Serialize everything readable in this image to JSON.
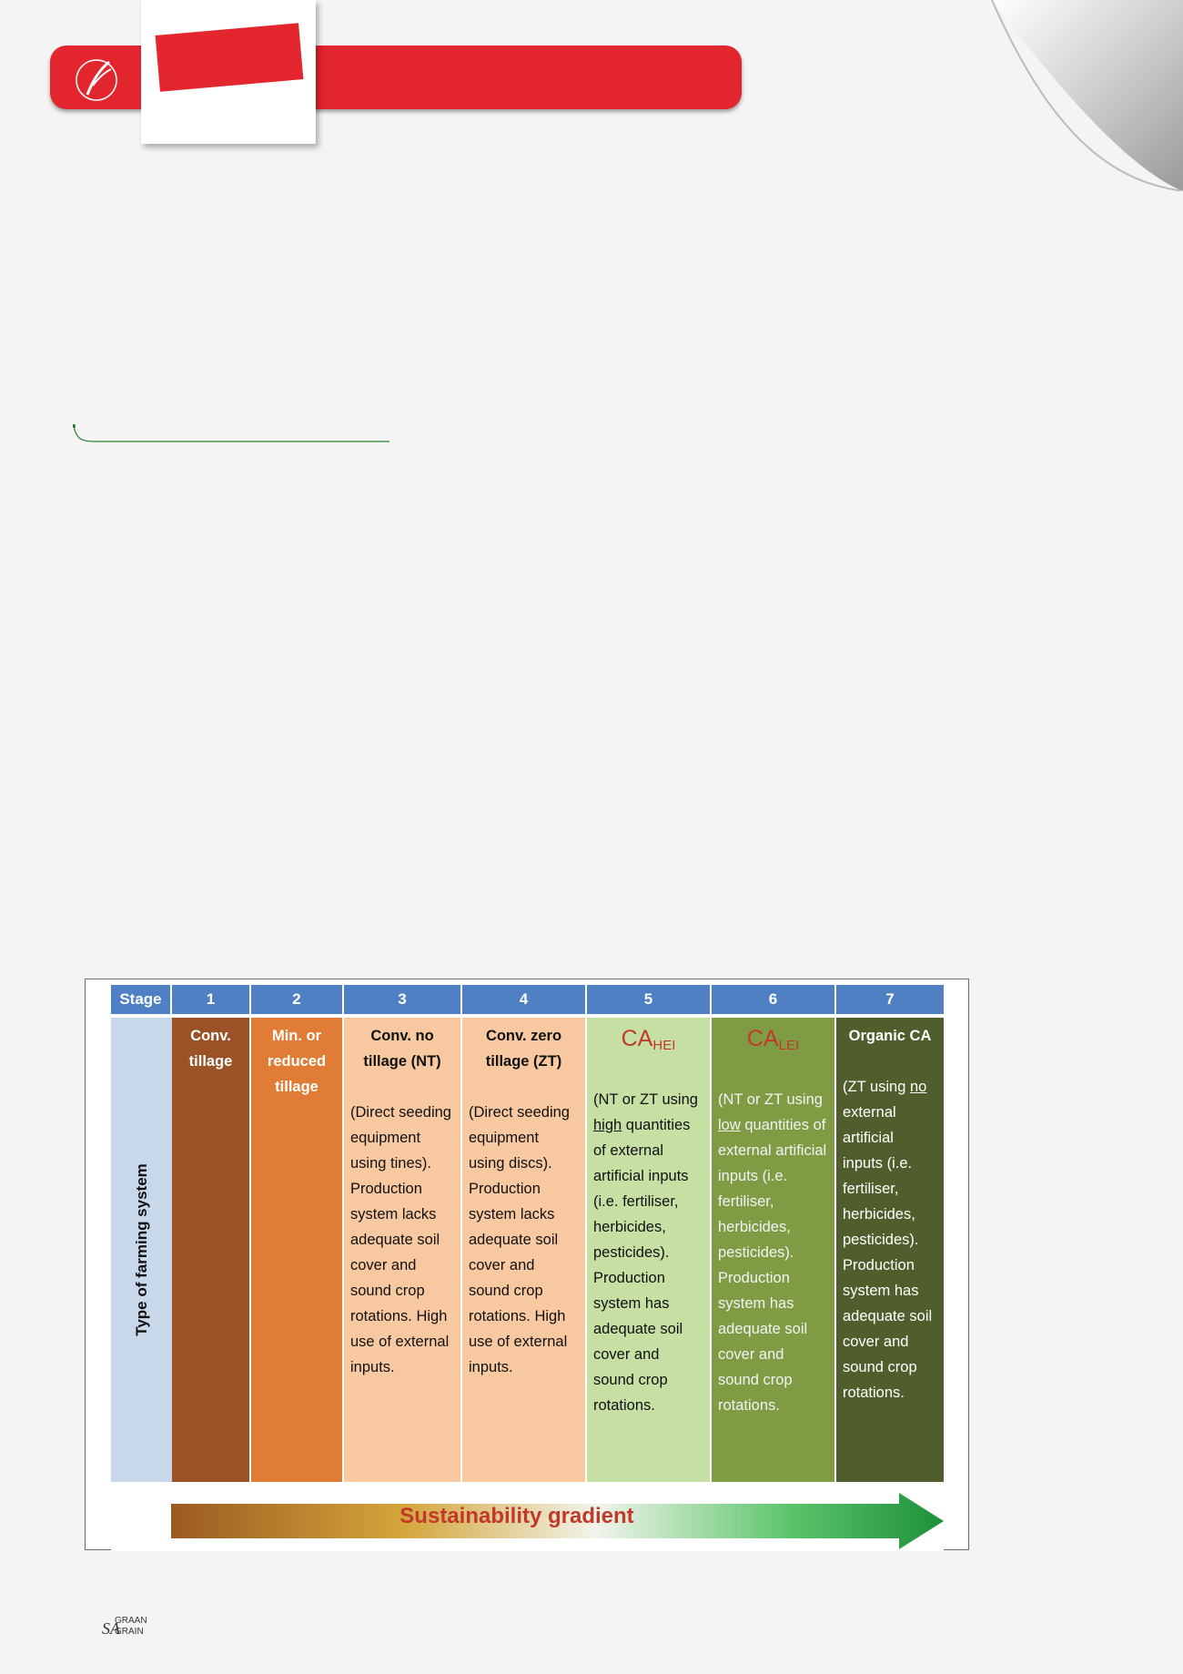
{
  "figure": {
    "header": {
      "stage_label": "Stage",
      "stages": [
        "1",
        "2",
        "3",
        "4",
        "5",
        "6",
        "7"
      ]
    },
    "row_label": "Type of farming system",
    "columns": [
      {
        "title": "Conv. tillage",
        "color": "#9b5226",
        "text_color": "#ffffff",
        "desc": ""
      },
      {
        "title": "Min. or reduced tillage",
        "color": "#e07c35",
        "text_color": "#ffffff",
        "desc": ""
      },
      {
        "title": "Conv. no tillage (NT)",
        "color": "#f8c9a0",
        "text_color": "#111111",
        "desc": "(Direct seeding equipment using tines). Production system lacks adequate soil cover and sound crop rotations. High use of external inputs."
      },
      {
        "title": "Conv. zero tillage (ZT)",
        "color": "#f8c9a0",
        "text_color": "#111111",
        "desc": "(Direct seeding equipment using discs). Production system lacks adequate soil cover and sound crop rotations. High use of external inputs."
      },
      {
        "title_main": "CA",
        "title_sub": "HEI",
        "color": "#c6e0a4",
        "text_color": "#111111",
        "desc_pre": "(NT or ZT using ",
        "desc_u": "high",
        "desc_post": " quantities of external artificial inputs (i.e. fertiliser, herbicides, pesticides). Production system has adequate soil cover and sound crop rotations."
      },
      {
        "title_main": "CA",
        "title_sub": "LEI",
        "color": "#7f9c45",
        "text_color": "#f3f3f3",
        "desc_pre": "(NT or ZT using ",
        "desc_u": "low",
        "desc_post": " quantities of external artificial inputs (i.e. fertiliser, herbicides, pesticides). Production system has adequate soil cover and sound crop rotations."
      },
      {
        "title": "Organic CA",
        "color": "#4f5e2c",
        "text_color": "#ffffff",
        "desc_pre": "(ZT using ",
        "desc_u": "no",
        "desc_post": " external artificial inputs (i.e. fertiliser, herbicides, pesticides). Production system has adequate soil cover and sound crop rotations."
      }
    ],
    "gradient_label": "Sustainability gradient"
  },
  "footer": {
    "brand_line1": "GRAAN",
    "brand_line2": "GRAIN",
    "brand_prefix": "SA"
  },
  "colors": {
    "accent": "#e3262e",
    "header_blue": "#4f80c4"
  }
}
